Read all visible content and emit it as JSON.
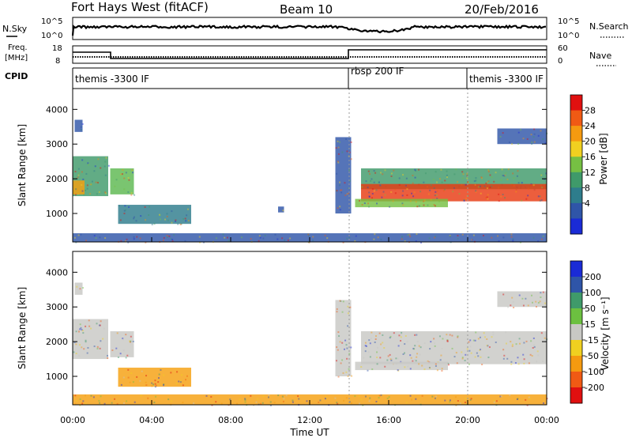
{
  "header": {
    "station": "Fort Hays West (fitACF)",
    "beam": "Beam 10",
    "date": "20/Feb/2016"
  },
  "top_panels": {
    "nsky": {
      "label": "N.Sky",
      "ticks": [
        "10^5",
        "10^0"
      ]
    },
    "nsearch": {
      "label": "N.Search",
      "ticks": [
        "10^5",
        "10^0"
      ]
    },
    "freq": {
      "label_line1": "Freq.",
      "label_line2": "[MHz]",
      "ticks": [
        "18",
        "8"
      ]
    },
    "nave": {
      "label": "Nave",
      "ticks": [
        "60",
        "0"
      ]
    },
    "cpid": {
      "label": "CPID",
      "segments": [
        {
          "start_hr": 0,
          "end_hr": 14,
          "label": "themis -3300 IF"
        },
        {
          "start_hr": 14,
          "end_hr": 20,
          "label": "rbsp 200 IF"
        },
        {
          "start_hr": 20,
          "end_hr": 24,
          "label": "themis -3300 IF"
        }
      ]
    }
  },
  "chart_data": [
    {
      "type": "heatmap",
      "name": "power",
      "xlabel": "",
      "ylabel": "Slant Range [km]",
      "xlim": [
        0,
        24
      ],
      "ylim": [
        180,
        4600
      ],
      "yticks": [
        "1000",
        "2000",
        "3000",
        "4000"
      ],
      "colorbar": {
        "label": "Power [dB]",
        "ticks": [
          "4",
          "8",
          "12",
          "16",
          "20",
          "24",
          "28"
        ],
        "colors": [
          "#1a2bd6",
          "#2f55a8",
          "#2e7d8c",
          "#3f9a6a",
          "#76c043",
          "#f0d020",
          "#f59a10",
          "#f05a14",
          "#e01010"
        ]
      },
      "regions": [
        {
          "t0": 0.1,
          "t1": 0.5,
          "r0": 3350,
          "r1": 3700,
          "color": "#2f55a8"
        },
        {
          "t0": 0.0,
          "t1": 1.8,
          "r0": 1500,
          "r1": 2650,
          "color": "#3f9a6a"
        },
        {
          "t0": 0.0,
          "t1": 0.6,
          "r0": 1550,
          "r1": 1950,
          "color": "#f5a010"
        },
        {
          "t0": 1.9,
          "t1": 3.1,
          "r0": 1550,
          "r1": 2300,
          "color": "#5db850"
        },
        {
          "t0": 2.3,
          "t1": 6.0,
          "r0": 700,
          "r1": 1250,
          "color": "#2e7d8c"
        },
        {
          "t0": 10.4,
          "t1": 10.7,
          "r0": 1030,
          "r1": 1200,
          "color": "#2f55a8"
        },
        {
          "t0": 13.3,
          "t1": 14.1,
          "r0": 1000,
          "r1": 3200,
          "color": "#2f55a8"
        },
        {
          "t0": 14.6,
          "t1": 24.0,
          "r0": 1700,
          "r1": 2300,
          "color": "#3f9a6a"
        },
        {
          "t0": 14.6,
          "t1": 24.0,
          "r0": 1350,
          "r1": 1850,
          "color": "#e83a12"
        },
        {
          "t0": 14.3,
          "t1": 19.0,
          "r0": 1180,
          "r1": 1420,
          "color": "#76c043"
        },
        {
          "t0": 21.5,
          "t1": 24.0,
          "r0": 3000,
          "r1": 3450,
          "color": "#2f55a8"
        },
        {
          "t0": 0.0,
          "t1": 24.0,
          "r0": 180,
          "r1": 430,
          "color": "#2f55a8"
        }
      ]
    },
    {
      "type": "heatmap",
      "name": "velocity",
      "xlabel": "Time UT",
      "ylabel": "Slant Range [km]",
      "xlim": [
        0,
        24
      ],
      "ylim": [
        180,
        4600
      ],
      "xticks": [
        "00:00",
        "04:00",
        "08:00",
        "12:00",
        "16:00",
        "20:00",
        "00:00"
      ],
      "yticks": [
        "1000",
        "2000",
        "3000",
        "4000"
      ],
      "colorbar": {
        "label": "Velocity [m s⁻¹]",
        "ticks": [
          "200",
          "100",
          "50",
          "15",
          "-15",
          "-50",
          "-100",
          "-200"
        ],
        "colors": [
          "#1a2bd6",
          "#2f55a8",
          "#3f9a6a",
          "#6cc040",
          "#c8c8c4",
          "#f0d020",
          "#f59a10",
          "#f05a14",
          "#e01010"
        ]
      },
      "regions": [
        {
          "t0": 0.0,
          "t1": 1.8,
          "r0": 1500,
          "r1": 2650,
          "color": "#c8c8c4"
        },
        {
          "t0": 1.9,
          "t1": 3.1,
          "r0": 1550,
          "r1": 2300,
          "color": "#c8c8c4"
        },
        {
          "t0": 0.1,
          "t1": 0.5,
          "r0": 3350,
          "r1": 3700,
          "color": "#c8c8c4"
        },
        {
          "t0": 2.3,
          "t1": 6.0,
          "r0": 700,
          "r1": 1250,
          "color": "#f5a010"
        },
        {
          "t0": 13.3,
          "t1": 14.1,
          "r0": 1000,
          "r1": 3200,
          "color": "#c8c8c4"
        },
        {
          "t0": 14.6,
          "t1": 24.0,
          "r0": 1350,
          "r1": 2300,
          "color": "#c8c8c4"
        },
        {
          "t0": 14.3,
          "t1": 19.0,
          "r0": 1180,
          "r1": 1420,
          "color": "#c8c8c4"
        },
        {
          "t0": 21.5,
          "t1": 24.0,
          "r0": 3000,
          "r1": 3450,
          "color": "#c8c8c4"
        },
        {
          "t0": 0.0,
          "t1": 24.0,
          "r0": 180,
          "r1": 480,
          "color": "#f5a010"
        }
      ]
    }
  ]
}
